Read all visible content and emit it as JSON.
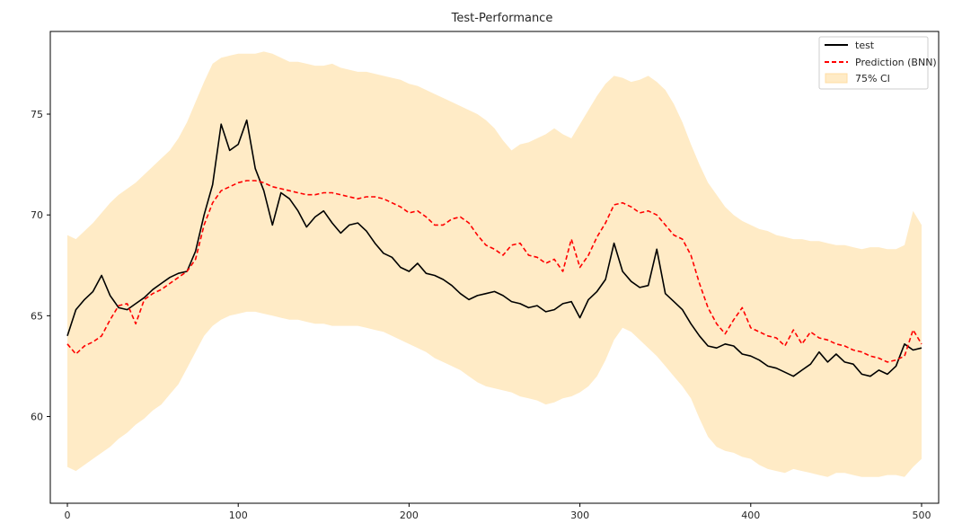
{
  "chart_data": {
    "type": "line",
    "title": "Test-Performance",
    "xlabel": "",
    "ylabel": "",
    "xlim": [
      -10,
      510
    ],
    "ylim": [
      55.7,
      79.1
    ],
    "x_ticks": [
      0,
      100,
      200,
      300,
      400,
      500
    ],
    "y_ticks": [
      60,
      65,
      70,
      75
    ],
    "grid": false,
    "legend_position": "top-right",
    "legend": [
      "test",
      "Prediction (BNN)",
      "75% CI"
    ],
    "colors": {
      "test": "#000000",
      "prediction": "#ff0000",
      "ci": "#ffebc6"
    },
    "series": [
      {
        "name": "test",
        "style": "solid",
        "x": [
          0,
          5,
          10,
          15,
          20,
          25,
          30,
          35,
          40,
          45,
          50,
          55,
          60,
          65,
          70,
          75,
          80,
          85,
          90,
          95,
          100,
          105,
          110,
          115,
          120,
          125,
          130,
          135,
          140,
          145,
          150,
          155,
          160,
          165,
          170,
          175,
          180,
          185,
          190,
          195,
          200,
          205,
          210,
          215,
          220,
          225,
          230,
          235,
          240,
          245,
          250,
          255,
          260,
          265,
          270,
          275,
          280,
          285,
          290,
          295,
          300,
          305,
          310,
          315,
          320,
          325,
          330,
          335,
          340,
          345,
          350,
          355,
          360,
          365,
          370,
          375,
          380,
          385,
          390,
          395,
          400,
          405,
          410,
          415,
          420,
          425,
          430,
          435,
          440,
          445,
          450,
          455,
          460,
          465,
          470,
          475,
          480,
          485,
          490,
          495,
          500
        ],
        "values": [
          64.0,
          65.3,
          65.8,
          66.2,
          67.0,
          66.0,
          65.4,
          65.3,
          65.6,
          65.9,
          66.3,
          66.6,
          66.9,
          67.1,
          67.2,
          68.2,
          70.0,
          71.5,
          74.5,
          73.2,
          73.5,
          74.7,
          72.3,
          71.2,
          69.5,
          71.1,
          70.8,
          70.2,
          69.4,
          69.9,
          70.2,
          69.6,
          69.1,
          69.5,
          69.6,
          69.2,
          68.6,
          68.1,
          67.9,
          67.4,
          67.2,
          67.6,
          67.1,
          67.0,
          66.8,
          66.5,
          66.1,
          65.8,
          66.0,
          66.1,
          66.2,
          66.0,
          65.7,
          65.6,
          65.4,
          65.5,
          65.2,
          65.3,
          65.6,
          65.7,
          64.9,
          65.8,
          66.2,
          66.8,
          68.6,
          67.2,
          66.7,
          66.4,
          66.5,
          68.3,
          66.1,
          65.7,
          65.3,
          64.6,
          64.0,
          63.5,
          63.4,
          63.6,
          63.5,
          63.1,
          63.0,
          62.8,
          62.5,
          62.4,
          62.2,
          62.0,
          62.3,
          62.6,
          63.2,
          62.7,
          63.1,
          62.7,
          62.6,
          62.1,
          62.0,
          62.3,
          62.1,
          62.5,
          63.6,
          63.3,
          63.4
        ]
      },
      {
        "name": "Prediction (BNN)",
        "style": "dashed",
        "x": [
          0,
          5,
          10,
          15,
          20,
          25,
          30,
          35,
          40,
          45,
          50,
          55,
          60,
          65,
          70,
          75,
          80,
          85,
          90,
          95,
          100,
          105,
          110,
          115,
          120,
          125,
          130,
          135,
          140,
          145,
          150,
          155,
          160,
          165,
          170,
          175,
          180,
          185,
          190,
          195,
          200,
          205,
          210,
          215,
          220,
          225,
          230,
          235,
          240,
          245,
          250,
          255,
          260,
          265,
          270,
          275,
          280,
          285,
          290,
          295,
          300,
          305,
          310,
          315,
          320,
          325,
          330,
          335,
          340,
          345,
          350,
          355,
          360,
          365,
          370,
          375,
          380,
          385,
          390,
          395,
          400,
          405,
          410,
          415,
          420,
          425,
          430,
          435,
          440,
          445,
          450,
          455,
          460,
          465,
          470,
          475,
          480,
          485,
          490,
          495,
          500
        ],
        "values": [
          63.6,
          63.1,
          63.5,
          63.7,
          64.0,
          64.8,
          65.5,
          65.6,
          64.6,
          65.8,
          66.1,
          66.3,
          66.6,
          66.9,
          67.2,
          67.8,
          69.5,
          70.6,
          71.2,
          71.4,
          71.6,
          71.7,
          71.7,
          71.6,
          71.4,
          71.3,
          71.2,
          71.1,
          71.0,
          71.0,
          71.1,
          71.1,
          71.0,
          70.9,
          70.8,
          70.9,
          70.9,
          70.8,
          70.6,
          70.4,
          70.1,
          70.2,
          69.9,
          69.5,
          69.5,
          69.8,
          69.9,
          69.6,
          69.0,
          68.5,
          68.3,
          68.0,
          68.5,
          68.6,
          68.0,
          67.9,
          67.6,
          67.8,
          67.2,
          68.8,
          67.4,
          68.0,
          68.9,
          69.6,
          70.5,
          70.6,
          70.4,
          70.1,
          70.2,
          70.0,
          69.5,
          69.0,
          68.8,
          68.0,
          66.6,
          65.4,
          64.6,
          64.1,
          64.8,
          65.4,
          64.4,
          64.2,
          64.0,
          63.9,
          63.5,
          64.3,
          63.6,
          64.2,
          63.9,
          63.8,
          63.6,
          63.5,
          63.3,
          63.2,
          63.0,
          62.9,
          62.7,
          62.8,
          63.0,
          64.3,
          63.6
        ]
      },
      {
        "name": "75% CI",
        "style": "band",
        "x": [
          0,
          5,
          10,
          15,
          20,
          25,
          30,
          35,
          40,
          45,
          50,
          55,
          60,
          65,
          70,
          75,
          80,
          85,
          90,
          95,
          100,
          105,
          110,
          115,
          120,
          125,
          130,
          135,
          140,
          145,
          150,
          155,
          160,
          165,
          170,
          175,
          180,
          185,
          190,
          195,
          200,
          205,
          210,
          215,
          220,
          225,
          230,
          235,
          240,
          245,
          250,
          255,
          260,
          265,
          270,
          275,
          280,
          285,
          290,
          295,
          300,
          305,
          310,
          315,
          320,
          325,
          330,
          335,
          340,
          345,
          350,
          355,
          360,
          365,
          370,
          375,
          380,
          385,
          390,
          395,
          400,
          405,
          410,
          415,
          420,
          425,
          430,
          435,
          440,
          445,
          450,
          455,
          460,
          465,
          470,
          475,
          480,
          485,
          490,
          495,
          500
        ],
        "lower": [
          57.5,
          57.3,
          57.6,
          57.9,
          58.2,
          58.5,
          58.9,
          59.2,
          59.6,
          59.9,
          60.3,
          60.6,
          61.1,
          61.6,
          62.4,
          63.2,
          64.0,
          64.5,
          64.8,
          65.0,
          65.1,
          65.2,
          65.2,
          65.1,
          65.0,
          64.9,
          64.8,
          64.8,
          64.7,
          64.6,
          64.6,
          64.5,
          64.5,
          64.5,
          64.5,
          64.4,
          64.3,
          64.2,
          64.0,
          63.8,
          63.6,
          63.4,
          63.2,
          62.9,
          62.7,
          62.5,
          62.3,
          62.0,
          61.7,
          61.5,
          61.4,
          61.3,
          61.2,
          61.0,
          60.9,
          60.8,
          60.6,
          60.7,
          60.9,
          61.0,
          61.2,
          61.5,
          62.0,
          62.8,
          63.8,
          64.4,
          64.2,
          63.8,
          63.4,
          63.0,
          62.5,
          62.0,
          61.5,
          60.9,
          59.9,
          59.0,
          58.5,
          58.3,
          58.2,
          58.0,
          57.9,
          57.6,
          57.4,
          57.3,
          57.2,
          57.4,
          57.3,
          57.2,
          57.1,
          57.0,
          57.2,
          57.2,
          57.1,
          57.0,
          57.0,
          57.0,
          57.1,
          57.1,
          57.0,
          57.5,
          57.9
        ],
        "upper": [
          69.0,
          68.8,
          69.2,
          69.6,
          70.1,
          70.6,
          71.0,
          71.3,
          71.6,
          72.0,
          72.4,
          72.8,
          73.2,
          73.8,
          74.6,
          75.6,
          76.6,
          77.5,
          77.8,
          77.9,
          78.0,
          78.0,
          78.0,
          78.1,
          78.0,
          77.8,
          77.6,
          77.6,
          77.5,
          77.4,
          77.4,
          77.5,
          77.3,
          77.2,
          77.1,
          77.1,
          77.0,
          76.9,
          76.8,
          76.7,
          76.5,
          76.4,
          76.2,
          76.0,
          75.8,
          75.6,
          75.4,
          75.2,
          75.0,
          74.7,
          74.3,
          73.7,
          73.2,
          73.5,
          73.6,
          73.8,
          74.0,
          74.3,
          74.0,
          73.8,
          74.5,
          75.2,
          75.9,
          76.5,
          76.9,
          76.8,
          76.6,
          76.7,
          76.9,
          76.6,
          76.2,
          75.5,
          74.6,
          73.5,
          72.5,
          71.6,
          71.0,
          70.4,
          70.0,
          69.7,
          69.5,
          69.3,
          69.2,
          69.0,
          68.9,
          68.8,
          68.8,
          68.7,
          68.7,
          68.6,
          68.5,
          68.5,
          68.4,
          68.3,
          68.4,
          68.4,
          68.3,
          68.3,
          68.5,
          70.2,
          69.5
        ]
      }
    ]
  }
}
